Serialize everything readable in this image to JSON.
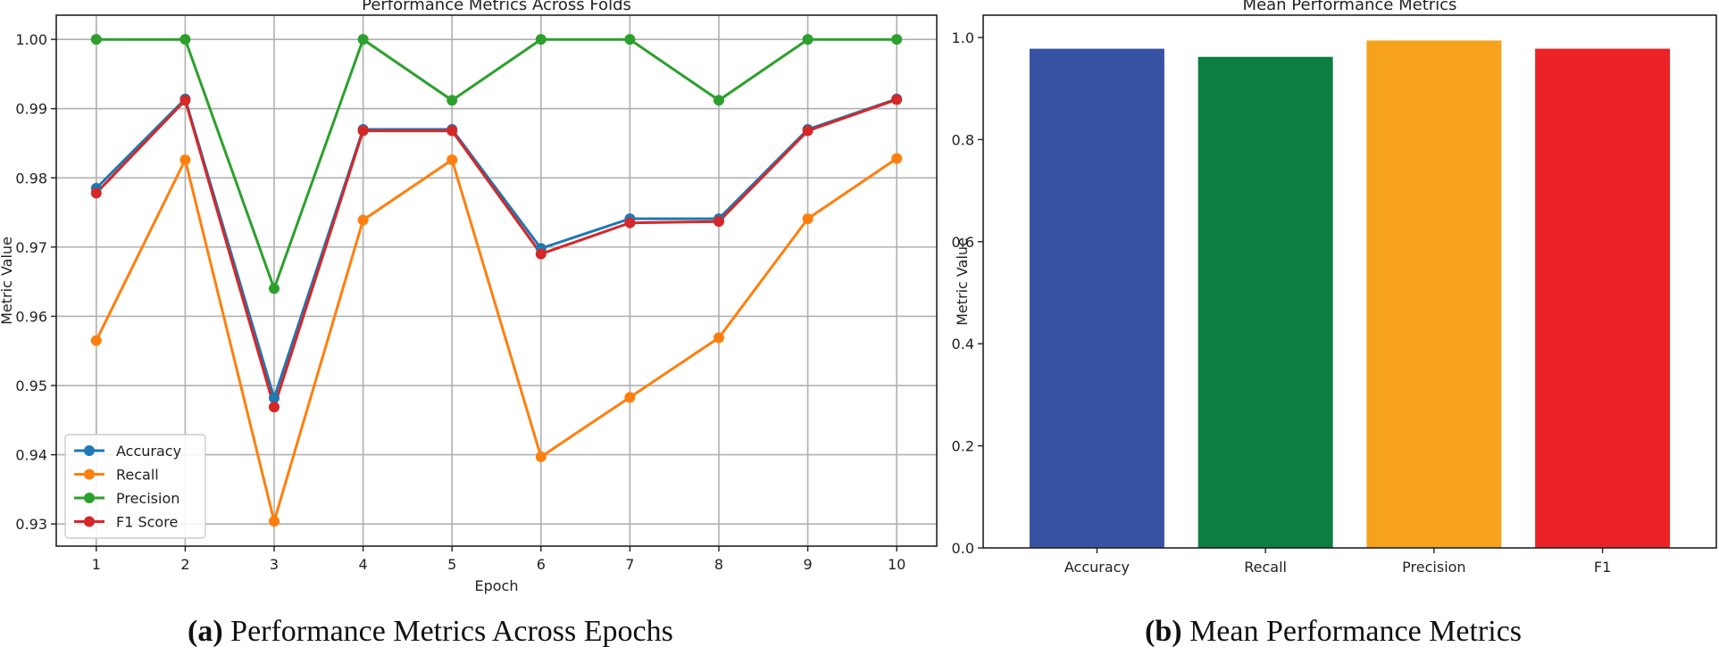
{
  "chart_data": [
    {
      "type": "line",
      "title": "Performance Metrics Across Folds",
      "xlabel": "Epoch",
      "ylabel": "Metric Value",
      "x": [
        1,
        2,
        3,
        4,
        5,
        6,
        7,
        8,
        9,
        10
      ],
      "xticks": [
        "1",
        "2",
        "3",
        "4",
        "5",
        "6",
        "7",
        "8",
        "9",
        "10"
      ],
      "yticks": [
        "0.93",
        "0.94",
        "0.95",
        "0.96",
        "0.97",
        "0.98",
        "0.99",
        "1.00"
      ],
      "xlim": [
        0.55,
        10.45
      ],
      "ylim": [
        0.9268,
        1.0035
      ],
      "grid": true,
      "legend": "lower-left",
      "series": [
        {
          "name": "Accuracy",
          "color": "#1f77b4",
          "values": [
            0.9785,
            0.9914,
            0.9482,
            0.987,
            0.987,
            0.9698,
            0.9741,
            0.9741,
            0.987,
            0.9914
          ]
        },
        {
          "name": "Recall",
          "color": "#ff7f0e",
          "values": [
            0.9565,
            0.9826,
            0.9304,
            0.9739,
            0.9826,
            0.9397,
            0.9483,
            0.9569,
            0.9741,
            0.9828
          ]
        },
        {
          "name": "Precision",
          "color": "#2ca02c",
          "values": [
            1.0,
            1.0,
            0.964,
            1.0,
            0.9912,
            1.0,
            1.0,
            0.9912,
            1.0,
            1.0
          ]
        },
        {
          "name": "F1 Score",
          "color": "#d62728",
          "values": [
            0.9778,
            0.9912,
            0.9469,
            0.9868,
            0.9868,
            0.969,
            0.9735,
            0.9737,
            0.9868,
            0.9913
          ]
        }
      ]
    },
    {
      "type": "bar",
      "title": "Mean Performance Metrics",
      "xlabel": "",
      "ylabel": "Metric Value",
      "categories": [
        "Accuracy",
        "Recall",
        "Precision",
        "F1"
      ],
      "values": [
        0.978,
        0.962,
        0.994,
        0.978
      ],
      "colors": [
        "#3953a4",
        "#0c7f40",
        "#f6a21d",
        "#ec2227"
      ],
      "yticks": [
        "0.0",
        "0.2",
        "0.4",
        "0.6",
        "0.8",
        "1.0"
      ],
      "ylim": [
        0,
        1.0437
      ],
      "grid": false
    }
  ],
  "captions": {
    "a_label": "(a)",
    "a_text": " Performance Metrics Across Epochs",
    "b_label": "(b)",
    "b_text": " Mean Performance Metrics"
  }
}
